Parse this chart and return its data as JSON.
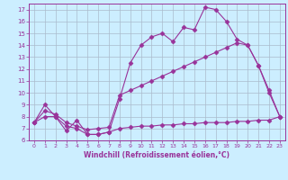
{
  "background_color": "#cceeff",
  "grid_color": "#aabbcc",
  "line_color": "#993399",
  "xlim": [
    -0.5,
    23.5
  ],
  "ylim": [
    6,
    17.5
  ],
  "xticks": [
    0,
    1,
    2,
    3,
    4,
    5,
    6,
    7,
    8,
    9,
    10,
    11,
    12,
    13,
    14,
    15,
    16,
    17,
    18,
    19,
    20,
    21,
    22,
    23
  ],
  "yticks": [
    6,
    7,
    8,
    9,
    10,
    11,
    12,
    13,
    14,
    15,
    16,
    17
  ],
  "xlabel": "Windchill (Refroidissement éolien,°C)",
  "series1_x": [
    0,
    1,
    2,
    3,
    4,
    5,
    6,
    7,
    8,
    9,
    10,
    11,
    12,
    13,
    14,
    15,
    16,
    17,
    18,
    19,
    20,
    21,
    22,
    23
  ],
  "series1_y": [
    7.5,
    9.0,
    8.0,
    6.8,
    7.7,
    6.5,
    6.5,
    6.7,
    9.5,
    12.5,
    14.0,
    14.7,
    15.0,
    14.3,
    15.5,
    15.3,
    17.2,
    17.0,
    16.0,
    14.5,
    14.0,
    12.3,
    10.2,
    8.0
  ],
  "series2_x": [
    0,
    1,
    2,
    3,
    4,
    5,
    6,
    7,
    8,
    9,
    10,
    11,
    12,
    13,
    14,
    15,
    16,
    17,
    18,
    19,
    20,
    21,
    22,
    23
  ],
  "series2_y": [
    7.5,
    8.5,
    8.2,
    7.5,
    7.2,
    6.9,
    7.0,
    7.1,
    9.8,
    10.2,
    10.6,
    11.0,
    11.4,
    11.8,
    12.2,
    12.6,
    13.0,
    13.4,
    13.8,
    14.2,
    14.0,
    12.3,
    10.0,
    8.0
  ],
  "series3_x": [
    0,
    1,
    2,
    3,
    4,
    5,
    6,
    7,
    8,
    9,
    10,
    11,
    12,
    13,
    14,
    15,
    16,
    17,
    18,
    19,
    20,
    21,
    22,
    23
  ],
  "series3_y": [
    7.5,
    8.0,
    8.0,
    7.2,
    7.0,
    6.5,
    6.5,
    6.7,
    7.0,
    7.1,
    7.2,
    7.2,
    7.3,
    7.3,
    7.4,
    7.4,
    7.5,
    7.5,
    7.5,
    7.6,
    7.6,
    7.7,
    7.7,
    8.0
  ],
  "marker": "D",
  "markersize": 2.5
}
